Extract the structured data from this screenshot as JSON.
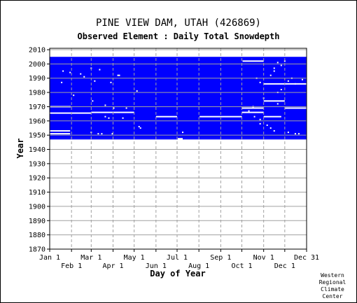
{
  "chart_data": {
    "type": "heatmap",
    "title": "PINE VIEW DAM, UTAH   (426869)",
    "subtitle": "Observed Element : Daily Total Snowdepth",
    "xlabel": "Day of Year",
    "ylabel": "Year",
    "ylim": [
      1870,
      2011
    ],
    "xlim": [
      1,
      366
    ],
    "grid": true,
    "y_ticks": [
      1870,
      1880,
      1890,
      1900,
      1910,
      1920,
      1930,
      1940,
      1950,
      1960,
      1970,
      1980,
      1990,
      2000,
      2010
    ],
    "x_ticks_upper": [
      {
        "label": "Jan 1",
        "day": 1
      },
      {
        "label": "Mar 1",
        "day": 60
      },
      {
        "label": "May 1",
        "day": 121
      },
      {
        "label": "Jul 1",
        "day": 182
      },
      {
        "label": "Sep 1",
        "day": 244
      },
      {
        "label": "Nov 1",
        "day": 305
      },
      {
        "label": "Dec 31",
        "day": 366
      }
    ],
    "x_ticks_lower": [
      {
        "label": "Feb 1",
        "day": 32
      },
      {
        "label": "Apr 1",
        "day": 91
      },
      {
        "label": "Jun 1",
        "day": 152
      },
      {
        "label": "Aug 1",
        "day": 213
      },
      {
        "label": "Oct 1",
        "day": 274
      },
      {
        "label": "Dec 1",
        "day": 335
      }
    ],
    "data_color": "#0000ff",
    "coverage": [
      {
        "start_year": 1948,
        "end_year": 2004,
        "start_day": 1,
        "end_day": 366
      },
      {
        "start_year": 1947,
        "end_year": 1947,
        "start_day": 1,
        "end_day": 183
      },
      {
        "start_year": 1947,
        "end_year": 1947,
        "start_day": 190,
        "end_day": 366
      }
    ],
    "missing_segments": [
      {
        "year": 1965.5,
        "start_day": 1,
        "end_day": 60
      },
      {
        "year": 1966,
        "start_day": 60,
        "end_day": 121
      },
      {
        "year": 1970,
        "start_day": 1,
        "end_day": 30
      },
      {
        "year": 1953,
        "start_day": 1,
        "end_day": 30
      },
      {
        "year": 1951,
        "start_day": 1,
        "end_day": 30
      },
      {
        "year": 1963,
        "start_day": 152,
        "end_day": 182
      },
      {
        "year": 1963,
        "start_day": 214,
        "end_day": 274
      },
      {
        "year": 1974,
        "start_day": 305,
        "end_day": 335
      },
      {
        "year": 1969,
        "start_day": 335,
        "end_day": 366
      },
      {
        "year": 1986,
        "start_day": 305,
        "end_day": 366
      },
      {
        "year": 2002,
        "start_day": 275,
        "end_day": 305
      },
      {
        "year": 1966,
        "start_day": 274,
        "end_day": 305
      },
      {
        "year": 1963,
        "start_day": 305,
        "end_day": 330
      },
      {
        "year": 1969,
        "start_day": 274,
        "end_day": 305
      }
    ],
    "missing_points": [
      [
        20,
        1995
      ],
      [
        30,
        1994
      ],
      [
        45,
        1993
      ],
      [
        50,
        1991
      ],
      [
        60,
        1997
      ],
      [
        65,
        1988
      ],
      [
        72,
        1996
      ],
      [
        88,
        1987
      ],
      [
        98,
        1992
      ],
      [
        100,
        1992
      ],
      [
        125,
        1981
      ],
      [
        18,
        1987
      ],
      [
        35,
        1978
      ],
      [
        62,
        1974
      ],
      [
        80,
        1971
      ],
      [
        92,
        1969
      ],
      [
        30,
        1970
      ],
      [
        110,
        1969
      ],
      [
        128,
        1956
      ],
      [
        130,
        1955
      ],
      [
        80,
        1963
      ],
      [
        85,
        1962
      ],
      [
        105,
        1962
      ],
      [
        60,
        1952
      ],
      [
        70,
        1951
      ],
      [
        75,
        1951
      ],
      [
        90,
        1951
      ],
      [
        190,
        1952
      ],
      [
        300,
        1961
      ],
      [
        310,
        1957
      ],
      [
        315,
        1955
      ],
      [
        320,
        1953
      ],
      [
        340,
        1952
      ],
      [
        350,
        1951
      ],
      [
        355,
        1951
      ],
      [
        290,
        1970
      ],
      [
        295,
        1990
      ],
      [
        315,
        1992
      ],
      [
        320,
        1995
      ],
      [
        325,
        1980
      ],
      [
        330,
        1982
      ],
      [
        340,
        1988
      ],
      [
        350,
        1986
      ],
      [
        325,
        2001
      ],
      [
        335,
        2002
      ],
      [
        345,
        1990
      ],
      [
        360,
        1989
      ],
      [
        300,
        1987
      ],
      [
        284,
        1967
      ],
      [
        292,
        1963
      ],
      [
        300,
        1958
      ],
      [
        305,
        1976
      ],
      [
        325,
        1972
      ],
      [
        320,
        1997
      ],
      [
        330,
        1999
      ]
    ]
  },
  "credit": [
    "Western",
    "Regional",
    "Climate",
    "Center"
  ]
}
